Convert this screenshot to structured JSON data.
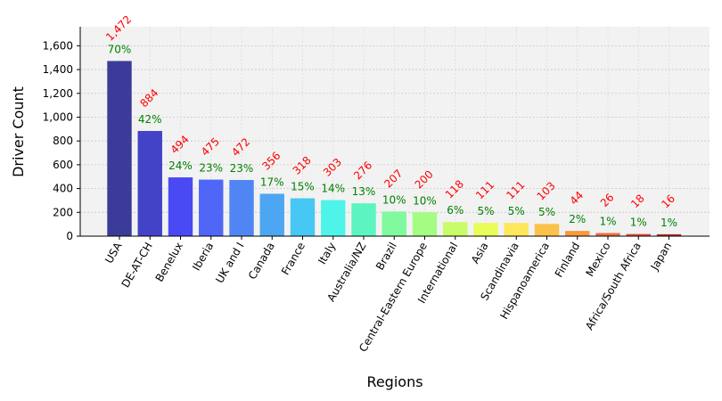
{
  "chart_data": {
    "type": "bar",
    "xlabel": "Regions",
    "ylabel": "Driver Count",
    "ylim": [
      0,
      1760
    ],
    "yticks": [
      0,
      200,
      400,
      600,
      800,
      1000,
      1200,
      1400,
      1600
    ],
    "ytick_labels": [
      "0",
      "200",
      "400",
      "600",
      "800",
      "1,000",
      "1,200",
      "1,400",
      "1,600"
    ],
    "grid": true,
    "categories": [
      "USA",
      "DE-AT-CH",
      "Benelux",
      "Iberia",
      "UK and I",
      "Canada",
      "France",
      "Italy",
      "Australia/NZ",
      "Brazil",
      "Central-Eastern Europe",
      "International",
      "Asia",
      "Scandinavia",
      "Hispanoamerica",
      "Finland",
      "Mexico",
      "Africa/South Africa",
      "Japan"
    ],
    "values": [
      1472,
      884,
      494,
      475,
      472,
      356,
      318,
      303,
      276,
      207,
      200,
      118,
      111,
      111,
      103,
      44,
      26,
      18,
      16
    ],
    "count_labels": [
      "1,472",
      "884",
      "494",
      "475",
      "472",
      "356",
      "318",
      "303",
      "276",
      "207",
      "200",
      "118",
      "111",
      "111",
      "103",
      "44",
      "26",
      "18",
      "16"
    ],
    "percent_labels": [
      "70%",
      "42%",
      "24%",
      "23%",
      "23%",
      "17%",
      "15%",
      "14%",
      "13%",
      "10%",
      "10%",
      "6%",
      "5%",
      "5%",
      "5%",
      "2%",
      "1%",
      "1%",
      "1%"
    ],
    "bar_colors": [
      "#3b3b9a",
      "#4343c8",
      "#4a4af5",
      "#4f66f7",
      "#4f86f4",
      "#4da6f2",
      "#47c7f3",
      "#4ff4e8",
      "#5cf5c2",
      "#80f99f",
      "#a4fc83",
      "#c8fc68",
      "#e8fc5a",
      "#fce85a",
      "#fbc24a",
      "#f79a3a",
      "#ee6f3a",
      "#e04a3a",
      "#b03030"
    ],
    "colors": {
      "count_label": "#ff0000",
      "percent_label": "#008000",
      "plot_background": "#f2f2f2"
    }
  }
}
